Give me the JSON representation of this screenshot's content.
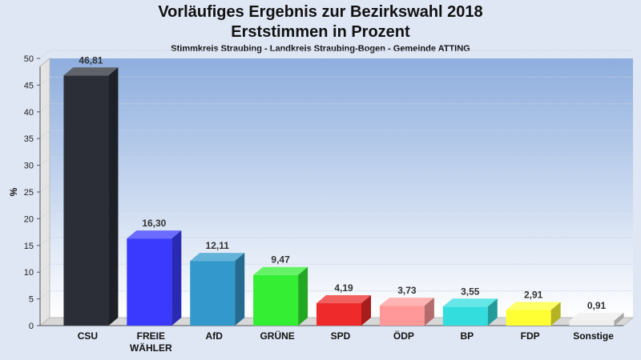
{
  "chart_data": {
    "type": "bar",
    "title": "Vorläufiges Ergebnis zur Bezirkswahl 2018",
    "subtitle_line": "Erststimmen in Prozent",
    "subtitle": "Stimmkreis Straubing - Landkreis Straubing-Bogen - Gemeinde ATTING",
    "ylabel": "%",
    "xlabel": "",
    "ylim": [
      0,
      50
    ],
    "yticks": [
      "0",
      "5",
      "10",
      "15",
      "20",
      "25",
      "30",
      "35",
      "40",
      "45",
      "50"
    ],
    "categories": [
      "CSU",
      "FREIE WÄHLER",
      "AfD",
      "GRÜNE",
      "SPD",
      "ÖDP",
      "BP",
      "FDP",
      "Sonstige"
    ],
    "values": [
      46.81,
      16.3,
      12.11,
      9.47,
      4.19,
      3.73,
      3.55,
      2.91,
      0.91
    ],
    "data_labels": [
      "46,81",
      "16,30",
      "12,11",
      "9,47",
      "4,19",
      "3,73",
      "3,55",
      "2,91",
      "0,91"
    ],
    "colors": [
      "#2b2e37",
      "#3a3aff",
      "#3399cc",
      "#33ee33",
      "#ee2a2a",
      "#ff9999",
      "#33dddd",
      "#ffff33",
      "#eeeeee"
    ],
    "grid": true,
    "legend": "none"
  }
}
